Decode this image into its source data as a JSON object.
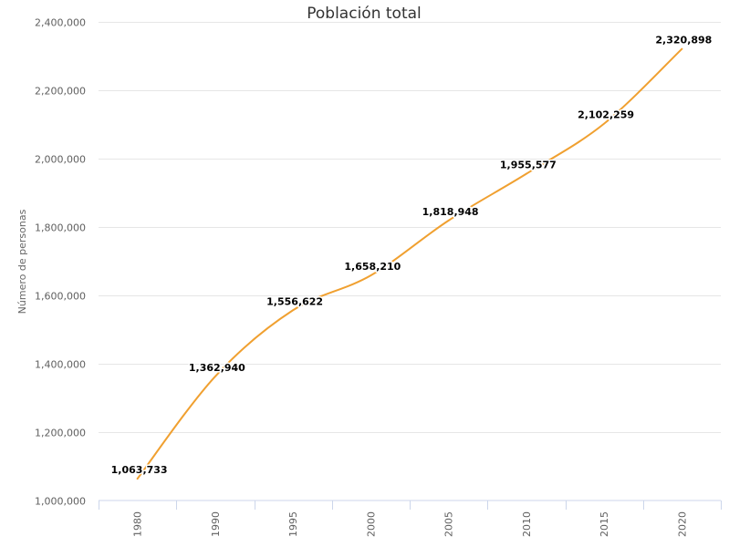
{
  "chart_data": {
    "type": "line",
    "title": "Población total",
    "xlabel": "",
    "ylabel": "Número de personas",
    "categories": [
      "1980",
      "1990",
      "1995",
      "2000",
      "2005",
      "2010",
      "2015",
      "2020"
    ],
    "series": [
      {
        "name": "Población total",
        "color": "#f0a030",
        "values": [
          1063733,
          1362940,
          1556622,
          1658210,
          1818948,
          1955577,
          2102259,
          2320898
        ],
        "labels": [
          "1,063,733",
          "1,362,940",
          "1,556,622",
          "1,658,210",
          "1,818,948",
          "1,955,577",
          "2,102,259",
          "2,320,898"
        ]
      }
    ],
    "ylim": [
      1000000,
      2400000
    ],
    "yticks": [
      1000000,
      1200000,
      1400000,
      1600000,
      1800000,
      2000000,
      2200000,
      2400000
    ],
    "ytick_labels": [
      "1,000,000",
      "1,200,000",
      "1,400,000",
      "1,600,000",
      "1,800,000",
      "2,000,000",
      "2,200,000",
      "2,400,000"
    ],
    "grid": true,
    "legend": "none"
  }
}
